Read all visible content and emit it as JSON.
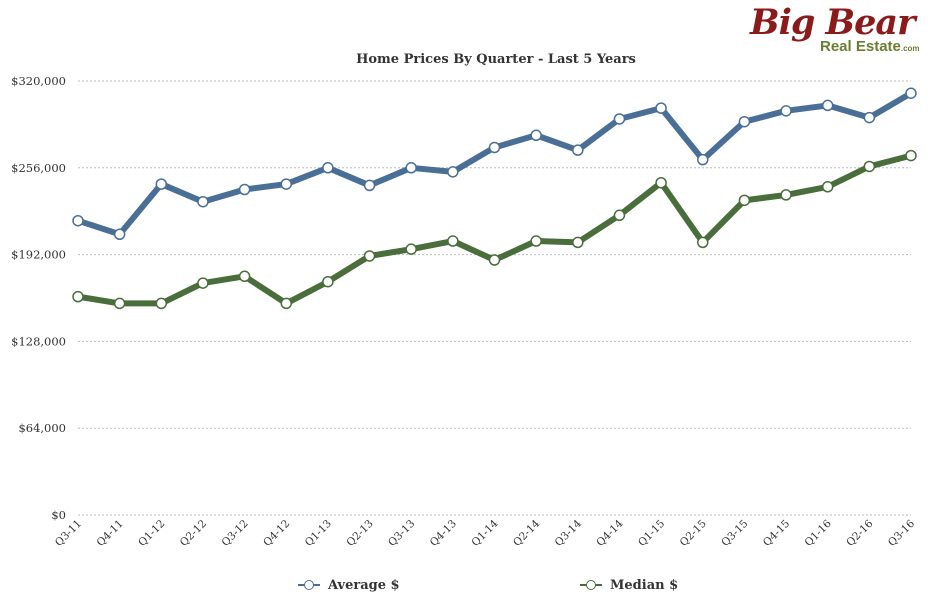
{
  "logo": {
    "top": "Big Bear",
    "bottom": "Real Estate",
    "suffix": ".com"
  },
  "chart_data": {
    "type": "line",
    "title": "Home Prices By Quarter - Last 5 Years",
    "xlabel": "",
    "ylabel": "",
    "categories": [
      "Q3-11",
      "Q4-11",
      "Q1-12",
      "Q2-12",
      "Q3-12",
      "Q4-12",
      "Q1-13",
      "Q2-13",
      "Q3-13",
      "Q4-13",
      "Q1-14",
      "Q2-14",
      "Q3-14",
      "Q4-14",
      "Q1-15",
      "Q2-15",
      "Q3-15",
      "Q4-15",
      "Q1-16",
      "Q2-16",
      "Q3-16"
    ],
    "ylim": [
      0,
      320000
    ],
    "yticks": [
      0,
      64000,
      128000,
      192000,
      256000,
      320000
    ],
    "ytick_labels": [
      "$0",
      "$64,000",
      "$128,000",
      "$192,000",
      "$256,000",
      "$320,000"
    ],
    "grid": true,
    "legend_position": "bottom",
    "series": [
      {
        "name": "Average $",
        "color": "#4a6f96",
        "values": [
          217000,
          207000,
          244000,
          231000,
          240000,
          244000,
          256000,
          243000,
          256000,
          253000,
          271000,
          280000,
          269000,
          292000,
          300000,
          262000,
          290000,
          298000,
          302000,
          293000,
          311000
        ]
      },
      {
        "name": "Median $",
        "color": "#4a6e3b",
        "values": [
          161000,
          156000,
          156000,
          171000,
          176000,
          156000,
          172000,
          191000,
          196000,
          202000,
          188000,
          202000,
          201000,
          221000,
          245000,
          201000,
          232000,
          236000,
          242000,
          257000,
          265000
        ]
      }
    ]
  }
}
